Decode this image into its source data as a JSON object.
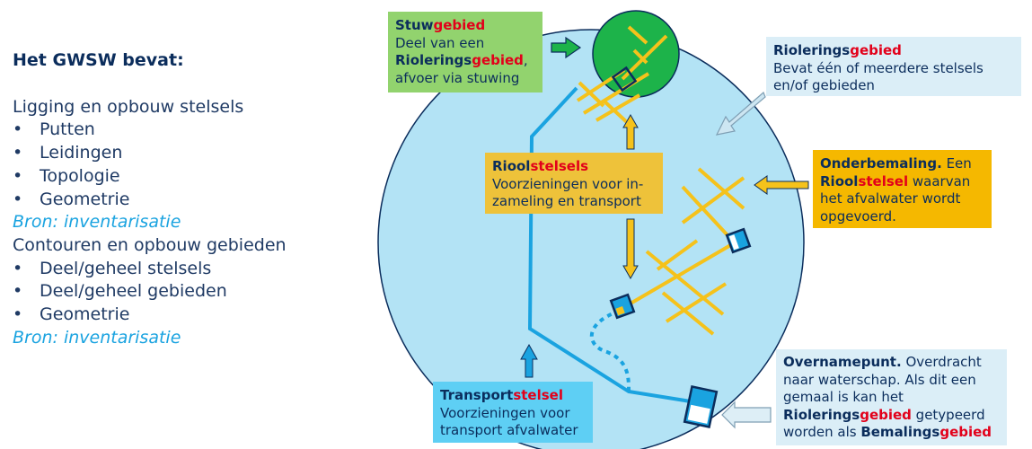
{
  "left_panel": {
    "title": "Het GWSW bevat:",
    "section1_heading": "Ligging en opbouw stelsels",
    "section1_items": [
      "Putten",
      "Leidingen",
      "Topologie",
      "Geometrie"
    ],
    "section1_source": "Bron: inventarisatie",
    "section2_heading": "Contouren en opbouw gebieden",
    "section2_items": [
      "Deel/geheel stelsels",
      "Deel/geheel gebieden",
      "Geometrie"
    ],
    "section2_source": "Bron: inventarisatie",
    "bullet": "•"
  },
  "boxes": {
    "stuwgebied": {
      "title_part1": "Stuw",
      "title_part2": "gebied",
      "line1": "Deel van een",
      "line2_part1": "Riolerings",
      "line2_part2": "gebied",
      "line2_part3": ",",
      "line3": "afvoer via stuwing"
    },
    "rioleringsgebied": {
      "title_part1": "Riolerings",
      "title_part2": "gebied",
      "line1": "Bevat één of meerdere stelsels",
      "line2": "en/of gebieden"
    },
    "rioolstelsels": {
      "title_part1": "Riool",
      "title_part2": "stelsels",
      "line1": "Voorzieningen voor in-",
      "line2": "zameling en transport"
    },
    "onderbemaling": {
      "title": "Onderbemaling.",
      "line1_rest": " Een",
      "line2_part1": "Riool",
      "line2_part2": "stelsel",
      "line2_part3": "  waarvan",
      "line3": "het afvalwater wordt",
      "line4": "opgevoerd."
    },
    "transportstelsel": {
      "title_part1": "Transport",
      "title_part2": "stelsel",
      "line1": "Voorzieningen voor",
      "line2": "transport afvalwater"
    },
    "overnamepunt": {
      "title": "Overnamepunt.",
      "line1_rest": " Overdracht",
      "line2": "naar waterschap. Als dit een",
      "line3": "gemaal is kan het",
      "line4_part1": "Riolerings",
      "line4_part2": "gebied",
      "line4_part3": "  getypeerd",
      "line5_part1": "worden als ",
      "line5_part2": "Bemalings",
      "line5_part3": "gebied"
    }
  },
  "colors": {
    "big_circle": "#b3e3f5",
    "small_circle": "#1db34a",
    "yellow_pipe": "#f5c21b",
    "blue_pipe": "#1aa3e0",
    "accent_red": "#e2001a",
    "navy": "#0b2d5c"
  }
}
